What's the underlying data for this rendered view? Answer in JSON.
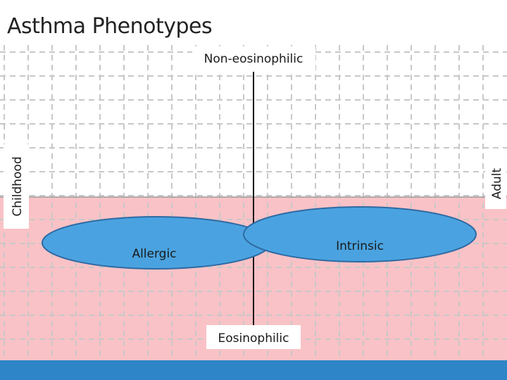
{
  "slide": {
    "title": "Asthma Phenotypes"
  },
  "axes": {
    "top_label": "Non-eosinophilic",
    "bottom_label": "Eosinophilic",
    "left_label": "Childhood",
    "right_label": "Adult"
  },
  "phenotypes": [
    {
      "label": "Allergic"
    },
    {
      "label": "Intrinsic"
    }
  ],
  "colors": {
    "grid_line": "#c8c8c8",
    "lower_band": "#f9c2c6",
    "band_edge": "#9a9a9a",
    "ellipse_fill": "#4aa3e0",
    "ellipse_stroke": "#2e6aa3",
    "bottom_bar": "#2e86c8",
    "axis_line": "#111111"
  }
}
